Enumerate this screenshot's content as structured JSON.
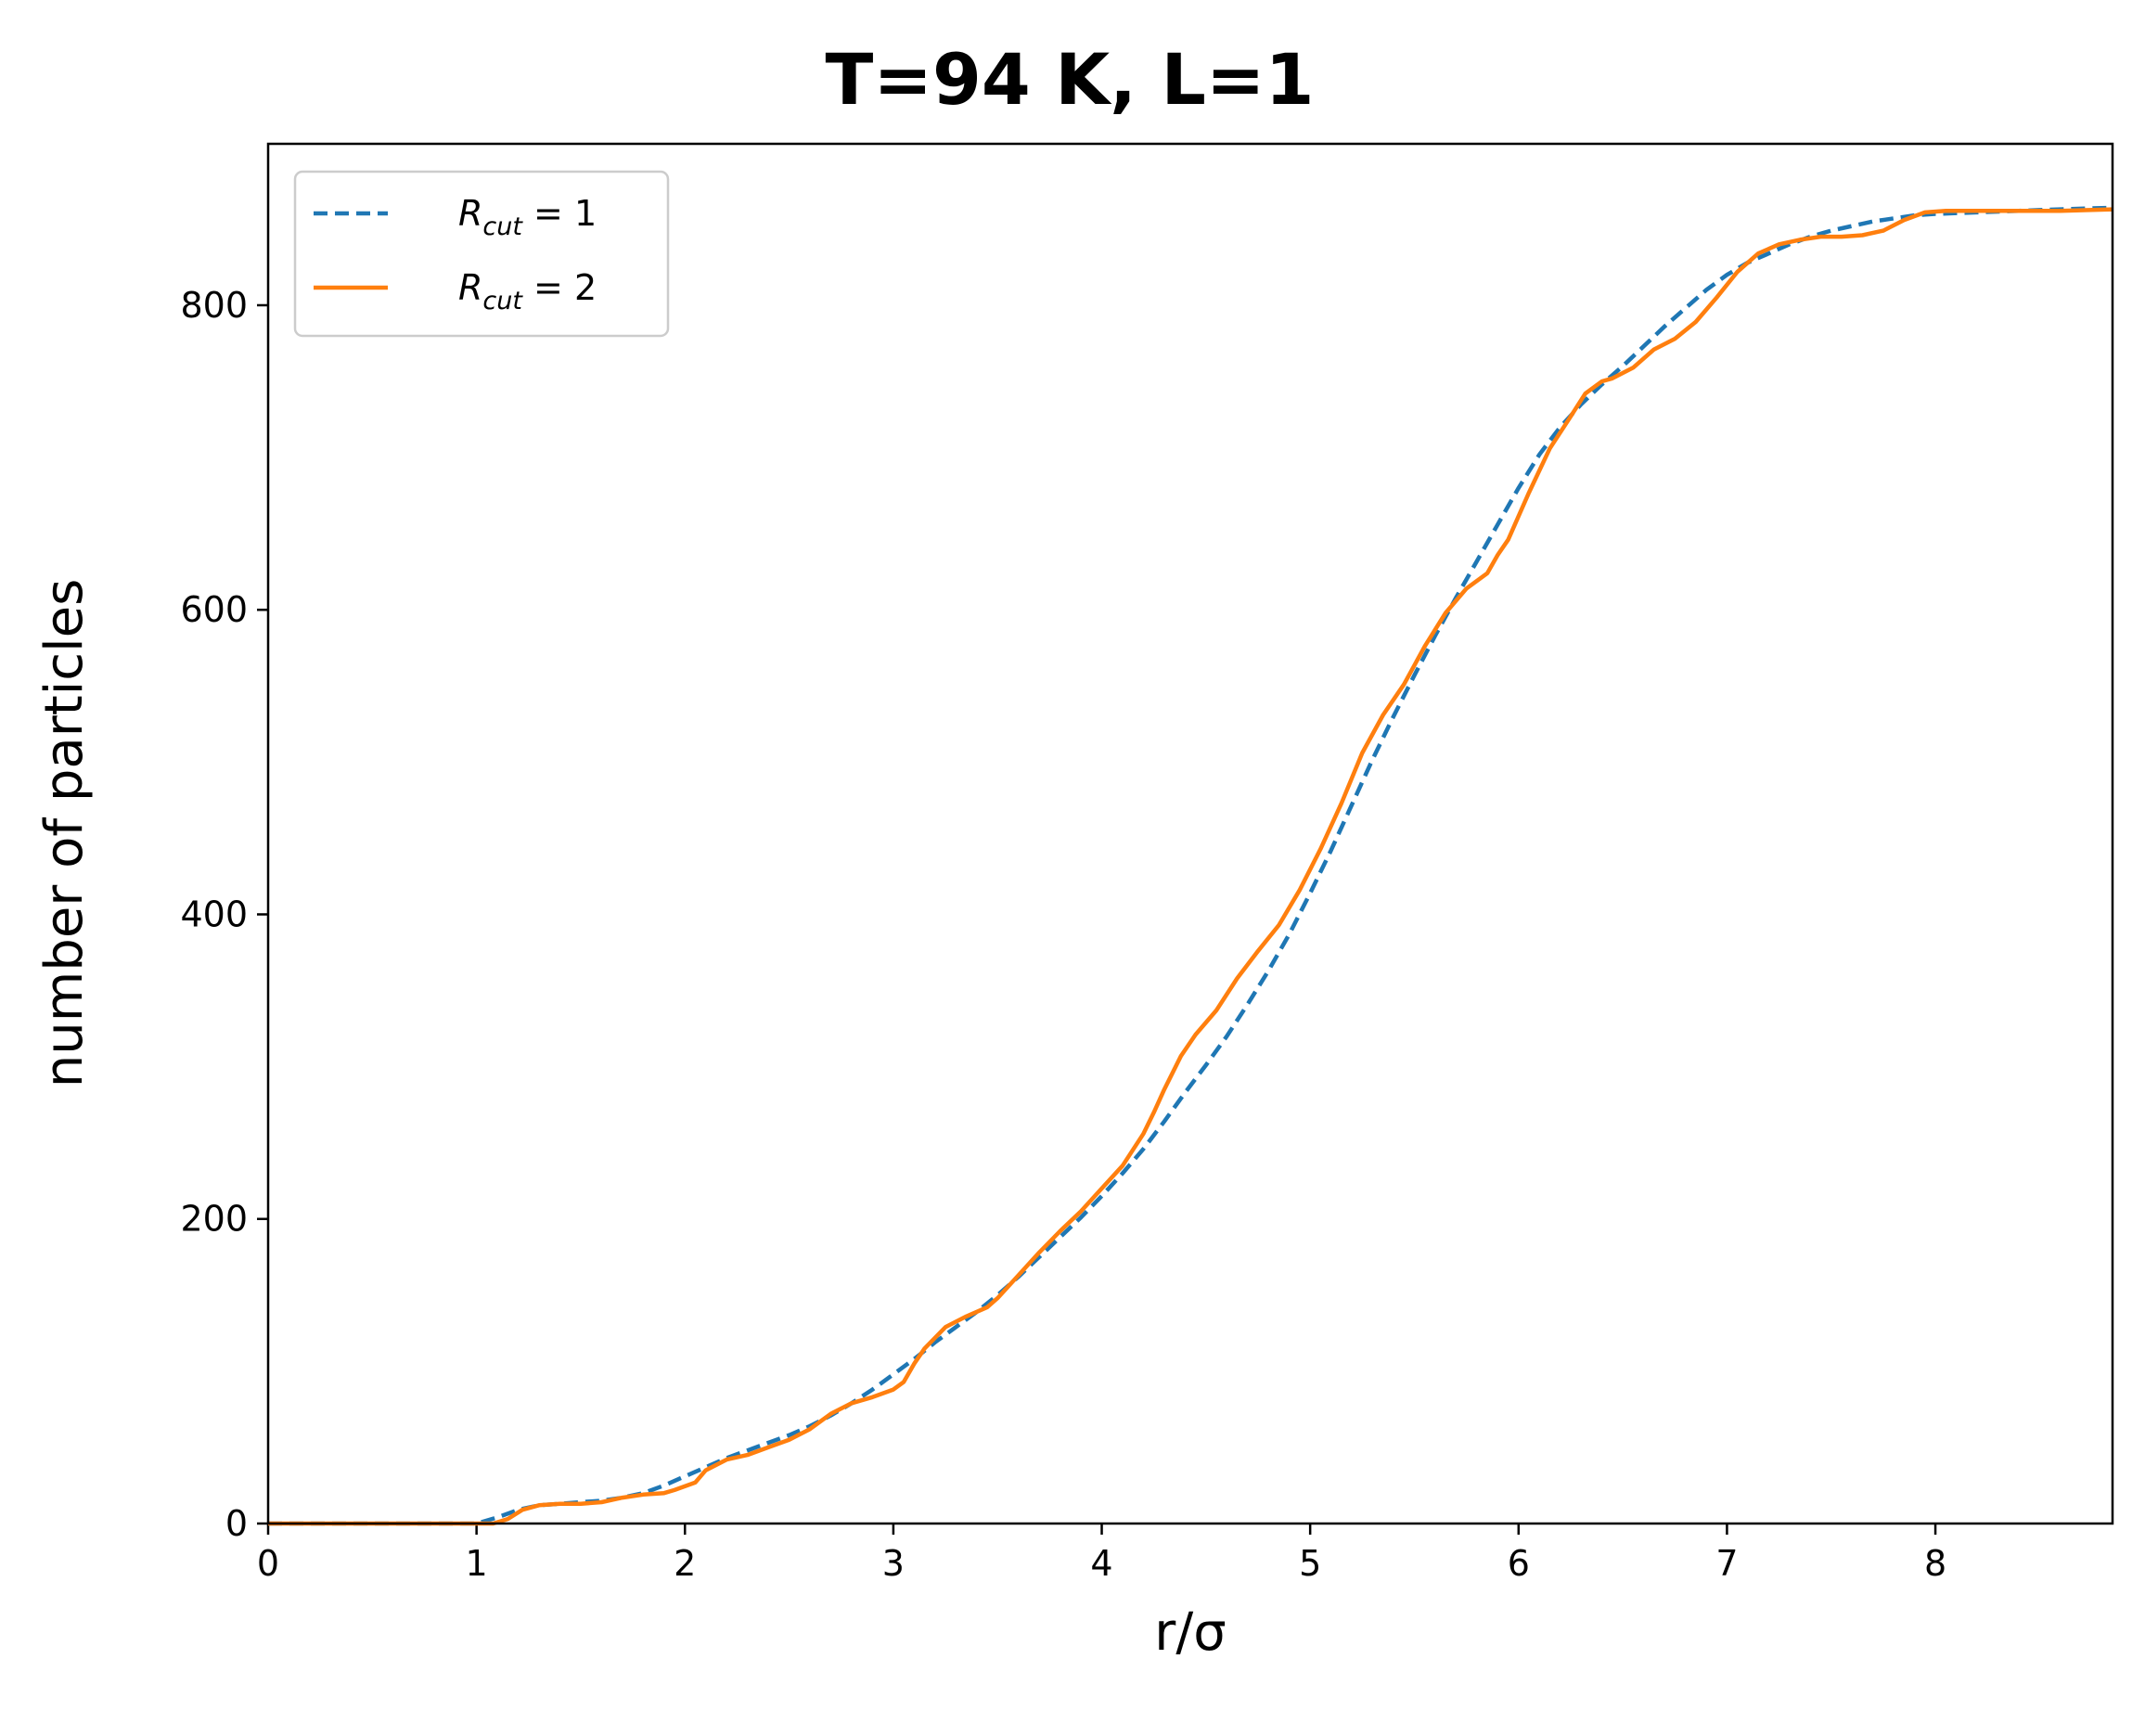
{
  "chart_data": {
    "type": "line",
    "title": "T=94 K, L=1",
    "xlabel": "r/σ",
    "ylabel": "number of particles",
    "xlim": [
      0,
      8.85
    ],
    "ylim": [
      0,
      906
    ],
    "xticks": [
      0,
      1,
      2,
      3,
      4,
      5,
      6,
      7,
      8
    ],
    "yticks": [
      0,
      200,
      400,
      600,
      800
    ],
    "grid": false,
    "legend_position": "upper left",
    "series": [
      {
        "name": "R_cut = 1",
        "legend": {
          "base": "R",
          "sub": "cut",
          "suffix": " = 1"
        },
        "color": "#1f77b4",
        "style": "dashed",
        "x": [
          0.0,
          0.5,
          1.0,
          1.1,
          1.2,
          1.3,
          1.4,
          1.5,
          1.6,
          1.7,
          1.8,
          1.9,
          2.0,
          2.1,
          2.2,
          2.3,
          2.4,
          2.5,
          2.6,
          2.7,
          2.8,
          2.9,
          3.0,
          3.1,
          3.2,
          3.3,
          3.4,
          3.5,
          3.6,
          3.7,
          3.8,
          3.9,
          4.0,
          4.1,
          4.2,
          4.3,
          4.4,
          4.5,
          4.6,
          4.7,
          4.8,
          4.9,
          5.0,
          5.1,
          5.2,
          5.3,
          5.4,
          5.5,
          5.6,
          5.7,
          5.8,
          5.9,
          6.0,
          6.1,
          6.2,
          6.3,
          6.4,
          6.5,
          6.6,
          6.7,
          6.8,
          6.9,
          7.0,
          7.1,
          7.2,
          7.3,
          7.4,
          7.5,
          7.6,
          7.7,
          7.8,
          7.9,
          8.0,
          8.2,
          8.4,
          8.6,
          8.85
        ],
        "y": [
          0,
          0,
          0,
          4,
          9,
          12,
          13,
          14,
          15,
          17,
          20,
          25,
          31,
          37,
          43,
          48,
          53,
          58,
          64,
          71,
          79,
          88,
          98,
          108,
          119,
          129,
          139,
          150,
          162,
          175,
          188,
          201,
          215,
          230,
          246,
          264,
          283,
          301,
          320,
          341,
          363,
          387,
          414,
          442,
          472,
          502,
          530,
          557,
          583,
          608,
          632,
          656,
          680,
          702,
          720,
          735,
          748,
          760,
          773,
          786,
          798,
          810,
          820,
          828,
          834,
          840,
          845,
          849,
          852,
          855,
          857,
          859,
          860,
          861,
          862,
          863,
          864
        ]
      },
      {
        "name": "R_cut = 2",
        "legend": {
          "base": "R",
          "sub": "cut",
          "suffix": " = 2"
        },
        "color": "#ff7f0e",
        "style": "solid",
        "x": [
          0.0,
          0.5,
          1.0,
          1.08,
          1.15,
          1.22,
          1.3,
          1.4,
          1.5,
          1.6,
          1.7,
          1.8,
          1.9,
          1.95,
          2.05,
          2.1,
          2.2,
          2.3,
          2.4,
          2.5,
          2.6,
          2.7,
          2.8,
          2.9,
          3.0,
          3.05,
          3.1,
          3.15,
          3.25,
          3.35,
          3.45,
          3.5,
          3.6,
          3.7,
          3.8,
          3.9,
          4.0,
          4.1,
          4.2,
          4.25,
          4.3,
          4.38,
          4.45,
          4.55,
          4.65,
          4.75,
          4.85,
          4.95,
          5.05,
          5.15,
          5.25,
          5.35,
          5.45,
          5.55,
          5.65,
          5.75,
          5.85,
          5.9,
          5.95,
          6.05,
          6.15,
          6.25,
          6.32,
          6.4,
          6.45,
          6.55,
          6.65,
          6.75,
          6.85,
          6.95,
          7.05,
          7.15,
          7.25,
          7.35,
          7.45,
          7.55,
          7.65,
          7.75,
          7.85,
          7.95,
          8.05,
          8.3,
          8.6,
          8.85
        ],
        "y": [
          0,
          0,
          0,
          0,
          3,
          9,
          12,
          13,
          13,
          14,
          17,
          19,
          20,
          22,
          27,
          35,
          42,
          45,
          50,
          55,
          62,
          72,
          79,
          83,
          88,
          93,
          105,
          115,
          129,
          136,
          142,
          148,
          163,
          178,
          192,
          205,
          220,
          235,
          256,
          270,
          285,
          307,
          321,
          337,
          358,
          376,
          393,
          416,
          443,
          473,
          506,
          531,
          551,
          576,
          598,
          614,
          624,
          636,
          646,
          677,
          706,
          727,
          742,
          750,
          752,
          759,
          771,
          778,
          789,
          805,
          822,
          834,
          840,
          843,
          845,
          845,
          846,
          849,
          856,
          861,
          862,
          862,
          862,
          863
        ]
      }
    ]
  }
}
